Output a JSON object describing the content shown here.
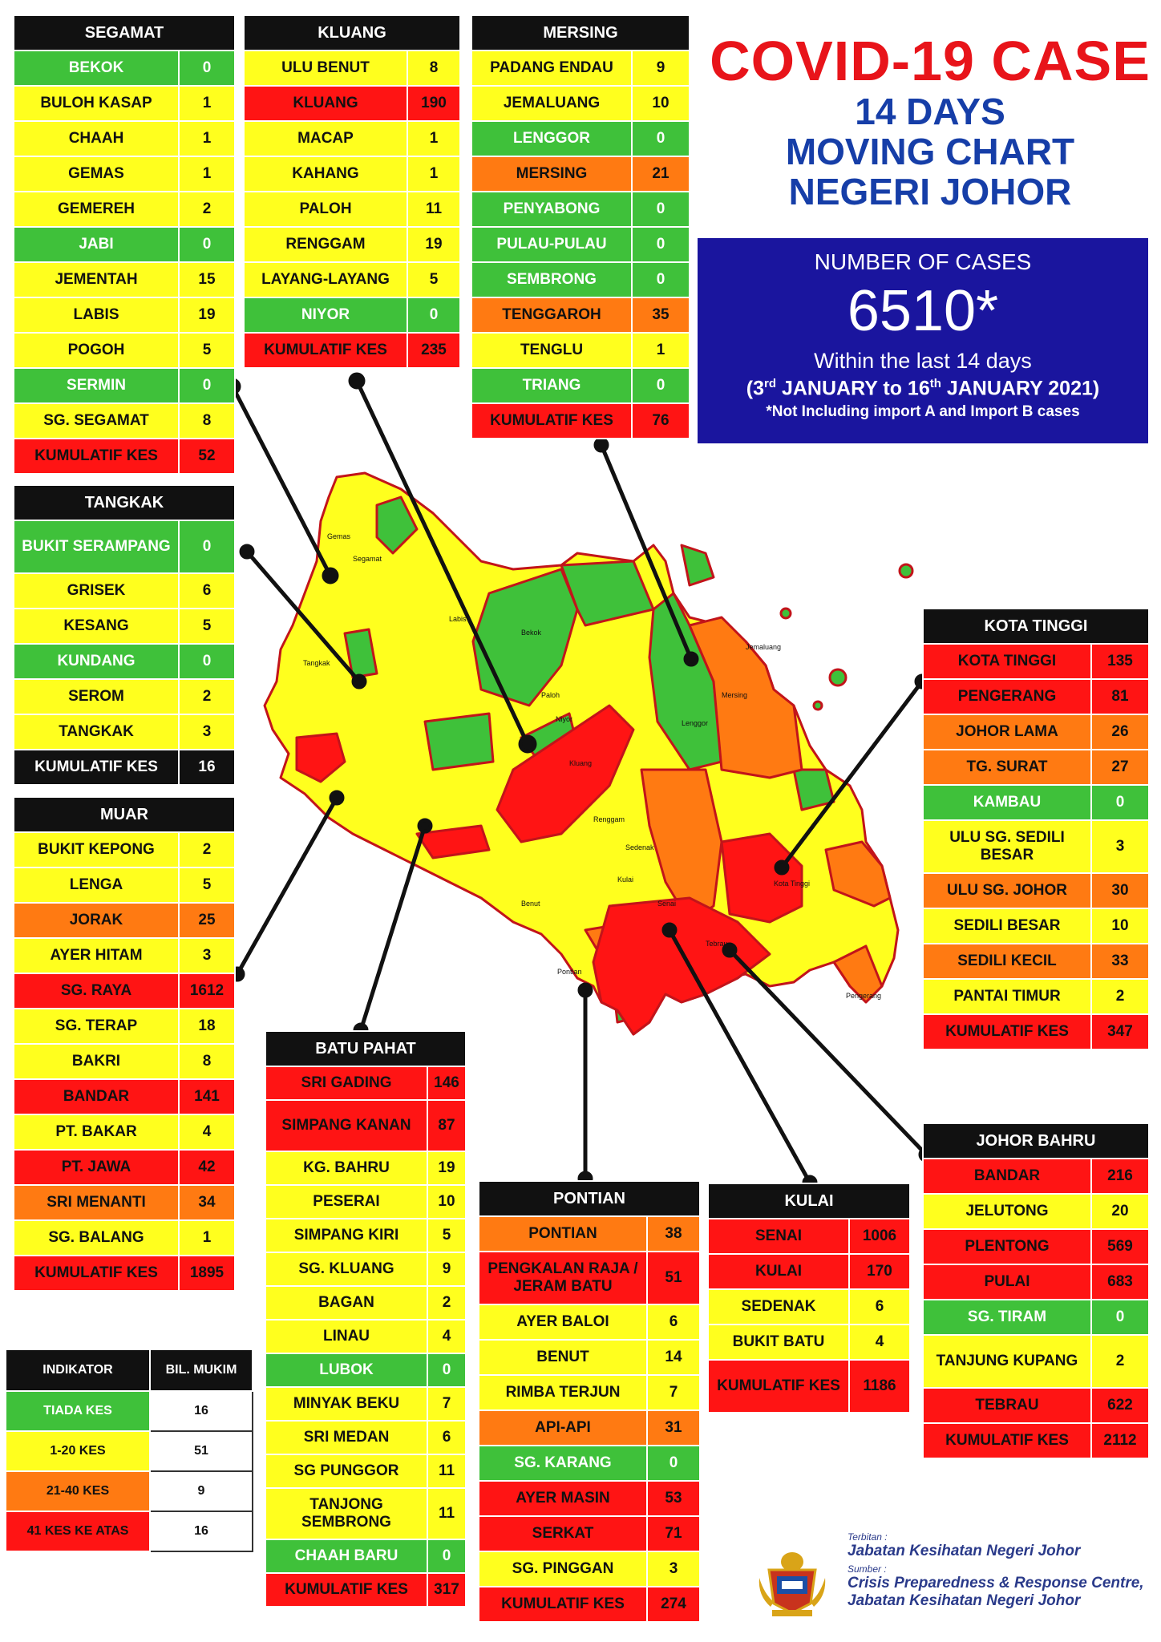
{
  "title": {
    "line1": "COVID-19 CASE",
    "line2": "14 DAYS",
    "line3": "MOVING CHART",
    "line4": "NEGERI JOHOR"
  },
  "summary": {
    "label": "NUMBER OF CASES",
    "total": "6510*",
    "period_line1": "Within the last 14 days",
    "period_line2_pre": "(3",
    "period_sup1": "rd",
    "period_line2_mid": " JANUARY to 16",
    "period_sup2": "th",
    "period_line2_post": " JANUARY 2021)",
    "note": "*Not Including import A and Import B cases"
  },
  "colors": {
    "green": "#3fc13a",
    "yellow": "#ffff1e",
    "orange": "#ff7a12",
    "red": "#ff1414",
    "black": "#111111",
    "title_red": "#e8141a",
    "title_blue": "#163ea8",
    "box_blue": "#1a159e"
  },
  "districts": {
    "segamat": {
      "title": "SEGAMAT",
      "rows": [
        {
          "name": "BEKOK",
          "value": "0",
          "level": "g"
        },
        {
          "name": "BULOH KASAP",
          "value": "1",
          "level": "y"
        },
        {
          "name": "CHAAH",
          "value": "1",
          "level": "y"
        },
        {
          "name": "GEMAS",
          "value": "1",
          "level": "y"
        },
        {
          "name": "GEMEREH",
          "value": "2",
          "level": "y"
        },
        {
          "name": "JABI",
          "value": "0",
          "level": "g"
        },
        {
          "name": "JEMENTAH",
          "value": "15",
          "level": "y"
        },
        {
          "name": "LABIS",
          "value": "19",
          "level": "y"
        },
        {
          "name": "POGOH",
          "value": "5",
          "level": "y"
        },
        {
          "name": "SERMIN",
          "value": "0",
          "level": "g"
        },
        {
          "name": "SG. SEGAMAT",
          "value": "8",
          "level": "y"
        },
        {
          "name": "KUMULATIF KES",
          "value": "52",
          "level": "r"
        }
      ]
    },
    "kluang": {
      "title": "KLUANG",
      "rows": [
        {
          "name": "ULU BENUT",
          "value": "8",
          "level": "y"
        },
        {
          "name": "KLUANG",
          "value": "190",
          "level": "r"
        },
        {
          "name": "MACAP",
          "value": "1",
          "level": "y"
        },
        {
          "name": "KAHANG",
          "value": "1",
          "level": "y"
        },
        {
          "name": "PALOH",
          "value": "11",
          "level": "y"
        },
        {
          "name": "RENGGAM",
          "value": "19",
          "level": "y"
        },
        {
          "name": "LAYANG-LAYANG",
          "value": "5",
          "level": "y"
        },
        {
          "name": "NIYOR",
          "value": "0",
          "level": "g"
        },
        {
          "name": "KUMULATIF KES",
          "value": "235",
          "level": "r"
        }
      ]
    },
    "mersing": {
      "title": "MERSING",
      "rows": [
        {
          "name": "PADANG ENDAU",
          "value": "9",
          "level": "y"
        },
        {
          "name": "JEMALUANG",
          "value": "10",
          "level": "y"
        },
        {
          "name": "LENGGOR",
          "value": "0",
          "level": "g"
        },
        {
          "name": "MERSING",
          "value": "21",
          "level": "o"
        },
        {
          "name": "PENYABONG",
          "value": "0",
          "level": "g"
        },
        {
          "name": "PULAU-PULAU",
          "value": "0",
          "level": "g"
        },
        {
          "name": "SEMBRONG",
          "value": "0",
          "level": "g"
        },
        {
          "name": "TENGGAROH",
          "value": "35",
          "level": "o"
        },
        {
          "name": "TENGLU",
          "value": "1",
          "level": "y"
        },
        {
          "name": "TRIANG",
          "value": "0",
          "level": "g"
        },
        {
          "name": "KUMULATIF KES",
          "value": "76",
          "level": "r"
        }
      ]
    },
    "tangkak": {
      "title": "TANGKAK",
      "rows": [
        {
          "name": "BUKIT SERAMPANG",
          "value": "0",
          "level": "g",
          "tall": true
        },
        {
          "name": "GRISEK",
          "value": "6",
          "level": "y"
        },
        {
          "name": "KESANG",
          "value": "5",
          "level": "y"
        },
        {
          "name": "KUNDANG",
          "value": "0",
          "level": "g"
        },
        {
          "name": "SEROM",
          "value": "2",
          "level": "y"
        },
        {
          "name": "TANGKAK",
          "value": "3",
          "level": "y"
        },
        {
          "name": "KUMULATIF KES",
          "value": "16",
          "level": "k"
        }
      ]
    },
    "muar": {
      "title": "MUAR",
      "rows": [
        {
          "name": "BUKIT KEPONG",
          "value": "2",
          "level": "y"
        },
        {
          "name": "LENGA",
          "value": "5",
          "level": "y"
        },
        {
          "name": "JORAK",
          "value": "25",
          "level": "o"
        },
        {
          "name": "AYER HITAM",
          "value": "3",
          "level": "y"
        },
        {
          "name": "SG. RAYA",
          "value": "1612",
          "level": "r"
        },
        {
          "name": "SG. TERAP",
          "value": "18",
          "level": "y"
        },
        {
          "name": "BAKRI",
          "value": "8",
          "level": "y"
        },
        {
          "name": "BANDAR",
          "value": "141",
          "level": "r"
        },
        {
          "name": "PT. BAKAR",
          "value": "4",
          "level": "y"
        },
        {
          "name": "PT. JAWA",
          "value": "42",
          "level": "r"
        },
        {
          "name": "SRI MENANTI",
          "value": "34",
          "level": "o"
        },
        {
          "name": "SG. BALANG",
          "value": "1",
          "level": "y"
        },
        {
          "name": "KUMULATIF KES",
          "value": "1895",
          "level": "r"
        }
      ]
    },
    "kotatinggi": {
      "title": "KOTA TINGGI",
      "rows": [
        {
          "name": "KOTA TINGGI",
          "value": "135",
          "level": "r"
        },
        {
          "name": "PENGERANG",
          "value": "81",
          "level": "r"
        },
        {
          "name": "JOHOR LAMA",
          "value": "26",
          "level": "o"
        },
        {
          "name": "TG. SURAT",
          "value": "27",
          "level": "o"
        },
        {
          "name": "KAMBAU",
          "value": "0",
          "level": "g"
        },
        {
          "name": "ULU SG. SEDILI BESAR",
          "value": "3",
          "level": "y",
          "tall": true
        },
        {
          "name": "ULU  SG. JOHOR",
          "value": "30",
          "level": "o"
        },
        {
          "name": "SEDILI BESAR",
          "value": "10",
          "level": "y"
        },
        {
          "name": "SEDILI KECIL",
          "value": "33",
          "level": "o"
        },
        {
          "name": "PANTAI TIMUR",
          "value": "2",
          "level": "y"
        },
        {
          "name": "KUMULATIF KES",
          "value": "347",
          "level": "r"
        }
      ]
    },
    "batupahat": {
      "title": "BATU PAHAT",
      "rows": [
        {
          "name": "SRI GADING",
          "value": "146",
          "level": "r"
        },
        {
          "name": "SIMPANG KANAN",
          "value": "87",
          "level": "r",
          "tall": true
        },
        {
          "name": "KG. BAHRU",
          "value": "19",
          "level": "y"
        },
        {
          "name": "PESERAI",
          "value": "10",
          "level": "y"
        },
        {
          "name": "SIMPANG KIRI",
          "value": "5",
          "level": "y"
        },
        {
          "name": "SG. KLUANG",
          "value": "9",
          "level": "y"
        },
        {
          "name": "BAGAN",
          "value": "2",
          "level": "y"
        },
        {
          "name": "LINAU",
          "value": "4",
          "level": "y"
        },
        {
          "name": "LUBOK",
          "value": "0",
          "level": "g"
        },
        {
          "name": "MINYAK BEKU",
          "value": "7",
          "level": "y"
        },
        {
          "name": "SRI MEDAN",
          "value": "6",
          "level": "y"
        },
        {
          "name": "SG PUNGGOR",
          "value": "11",
          "level": "y"
        },
        {
          "name": "TANJONG SEMBRONG",
          "value": "11",
          "level": "y",
          "tall": true
        },
        {
          "name": "CHAAH BARU",
          "value": "0",
          "level": "g"
        },
        {
          "name": "KUMULATIF KES",
          "value": "317",
          "level": "r"
        }
      ]
    },
    "pontian": {
      "title": "PONTIAN",
      "rows": [
        {
          "name": "PONTIAN",
          "value": "38",
          "level": "o"
        },
        {
          "name": "PENGKALAN RAJA / JERAM BATU",
          "value": "51",
          "level": "r",
          "tall": true
        },
        {
          "name": "AYER BALOI",
          "value": "6",
          "level": "y"
        },
        {
          "name": "BENUT",
          "value": "14",
          "level": "y"
        },
        {
          "name": "RIMBA TERJUN",
          "value": "7",
          "level": "y"
        },
        {
          "name": "API-API",
          "value": "31",
          "level": "o"
        },
        {
          "name": "SG. KARANG",
          "value": "0",
          "level": "g"
        },
        {
          "name": "AYER MASIN",
          "value": "53",
          "level": "r"
        },
        {
          "name": "SERKAT",
          "value": "71",
          "level": "r"
        },
        {
          "name": "SG. PINGGAN",
          "value": "3",
          "level": "y"
        },
        {
          "name": "KUMULATIF KES",
          "value": "274",
          "level": "r"
        }
      ]
    },
    "kulai": {
      "title": "KULAI",
      "rows": [
        {
          "name": "SENAI",
          "value": "1006",
          "level": "r"
        },
        {
          "name": "KULAI",
          "value": "170",
          "level": "r"
        },
        {
          "name": "SEDENAK",
          "value": "6",
          "level": "y"
        },
        {
          "name": "BUKIT BATU",
          "value": "4",
          "level": "y"
        },
        {
          "name": "KUMULATIF KES",
          "value": "1186",
          "level": "r",
          "tall": true
        }
      ]
    },
    "johorbahru": {
      "title": "JOHOR BAHRU",
      "rows": [
        {
          "name": "BANDAR",
          "value": "216",
          "level": "r"
        },
        {
          "name": "JELUTONG",
          "value": "20",
          "level": "y"
        },
        {
          "name": "PLENTONG",
          "value": "569",
          "level": "r"
        },
        {
          "name": "PULAI",
          "value": "683",
          "level": "r"
        },
        {
          "name": "SG. TIRAM",
          "value": "0",
          "level": "g"
        },
        {
          "name": "TANJUNG KUPANG",
          "value": "2",
          "level": "y",
          "tall": true
        },
        {
          "name": "TEBRAU",
          "value": "622",
          "level": "r"
        },
        {
          "name": "KUMULATIF KES",
          "value": "2112",
          "level": "r"
        }
      ]
    }
  },
  "indicator": {
    "col1": "INDIKATOR",
    "col2": "BIL. MUKIM",
    "rows": [
      {
        "label": "TIADA KES",
        "count": "16",
        "level": "g"
      },
      {
        "label": "1-20 KES",
        "count": "51",
        "level": "y"
      },
      {
        "label": "21-40 KES",
        "count": "9",
        "level": "o"
      },
      {
        "label": "41 KES KE ATAS",
        "count": "16",
        "level": "r"
      }
    ]
  },
  "footer": {
    "published_label": "Terbitan :",
    "publisher": "Jabatan Kesihatan Negeri Johor",
    "source_label": "Sumber :",
    "source_line1": "Crisis Preparedness & Response Centre,",
    "source_line2": "Jabatan Kesihatan Negeri Johor"
  },
  "map_labels": {
    "gemas": "Gemas",
    "segamat": "Segamat",
    "tangkak": "Tangkak",
    "kluang": "Kluang",
    "mersing": "Mersing",
    "kotatinggi": "Kota Tinggi",
    "pontian": "Pontian",
    "senai": "Senai",
    "tebrau": "Tebrau",
    "renggam": "Renggam",
    "paloh": "Paloh",
    "niyor": "Niyor",
    "bekok": "Bekok",
    "labis": "Labis",
    "lenggor": "Lenggor",
    "jemaluang": "Jemaluang",
    "pengerang": "Pengerang",
    "kulai": "Kulai",
    "benut": "Benut",
    "sedenak": "Sedenak"
  }
}
